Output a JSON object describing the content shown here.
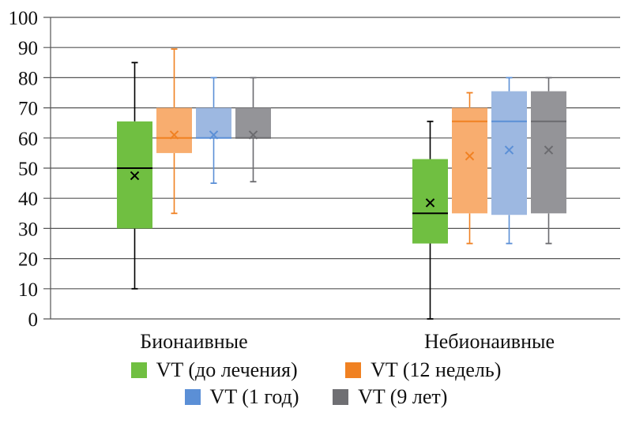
{
  "chart_data": {
    "type": "box",
    "title": "",
    "xlabel": "",
    "ylabel": "",
    "ylim": [
      0,
      100
    ],
    "yticks": [
      "0",
      "10",
      "20",
      "30",
      "40",
      "50",
      "60",
      "70",
      "80",
      "90",
      "100"
    ],
    "ytick_values": [
      0,
      10,
      20,
      30,
      40,
      50,
      60,
      70,
      80,
      90,
      100
    ],
    "grid": true,
    "legend_position": "bottom",
    "categories": [
      "Бионаивные",
      "Небионаивные"
    ],
    "series": [
      {
        "name": "VT (до лечения)",
        "color": "#70bf41",
        "line_color": "#000000",
        "boxes": [
          {
            "min": 10,
            "q1": 30,
            "median": 50,
            "q3": 65.5,
            "max": 85,
            "mean": 47.5
          },
          {
            "min": 0,
            "q1": 25,
            "median": 35,
            "q3": 53,
            "max": 65.5,
            "mean": 38.5
          }
        ]
      },
      {
        "name": "VT (12 недель)",
        "color": "#f8ad6f",
        "line_color": "#f08122",
        "legend_color": "#f08122",
        "boxes": [
          {
            "min": 35,
            "q1": 55,
            "median": 60,
            "q3": 70,
            "max": 89.5,
            "mean": 61
          },
          {
            "min": 25,
            "q1": 35,
            "median": 65.5,
            "q3": 70,
            "max": 75,
            "mean": 54
          }
        ]
      },
      {
        "name": "VT (1 год)",
        "color": "#9db8e1",
        "line_color": "#5b8fd6",
        "legend_color": "#5b8fd6",
        "boxes": [
          {
            "min": 45,
            "q1": 60,
            "median": 60,
            "q3": 70,
            "max": 80,
            "mean": 61
          },
          {
            "min": 25,
            "q1": 34.5,
            "median": 65.5,
            "q3": 75.5,
            "max": 80,
            "mean": 56
          }
        ]
      },
      {
        "name": "VT (9 лет)",
        "color": "#949498",
        "line_color": "#6b6b6f",
        "legend_color": "#6f6f73",
        "boxes": [
          {
            "min": 45.5,
            "q1": 60,
            "median": 60,
            "q3": 70,
            "max": 80,
            "mean": 61
          },
          {
            "min": 25,
            "q1": 35,
            "median": 65.5,
            "q3": 75.5,
            "max": 80,
            "mean": 56
          }
        ]
      }
    ]
  }
}
